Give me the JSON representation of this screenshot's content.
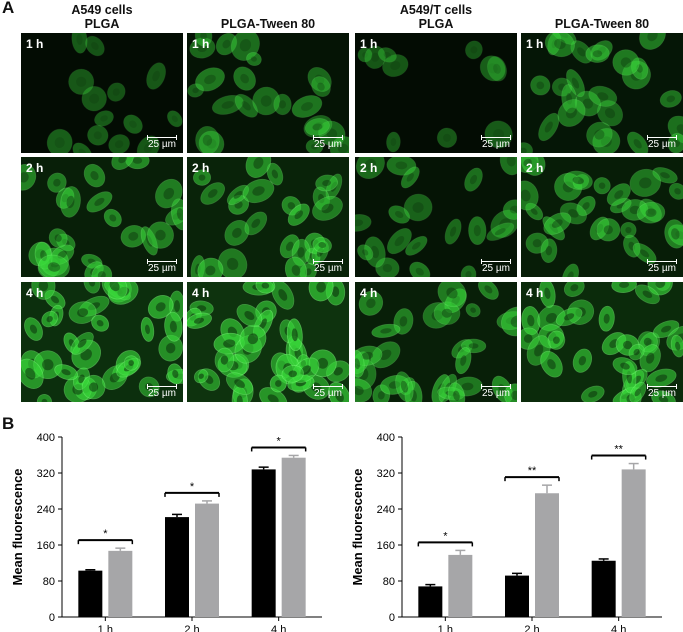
{
  "panel_a_label": "A",
  "panel_b_label": "B",
  "groups": [
    {
      "cell_line": "A549 cells",
      "formulation": "PLGA"
    },
    {
      "cell_line": "",
      "formulation": "PLGA-Tween 80"
    },
    {
      "cell_line": "A549/T cells",
      "formulation": "PLGA"
    },
    {
      "cell_line": "",
      "formulation": "PLGA-Tween 80"
    }
  ],
  "time_labels": [
    "1 h",
    "2 h",
    "4 h"
  ],
  "scale_bar_label": "25 µm",
  "fluorescence_color": "#39d83a",
  "chart_data": [
    {
      "type": "bar",
      "title": "",
      "xlabel": "",
      "ylabel": "Mean fluorescence",
      "categories": [
        "1 h",
        "2 h",
        "4 h"
      ],
      "ylim": [
        0,
        400
      ],
      "yticks": [
        0,
        80,
        160,
        240,
        320,
        400
      ],
      "series": [
        {
          "color": "#000000",
          "values": [
            103,
            222,
            328
          ],
          "errors": [
            2,
            6,
            5
          ]
        },
        {
          "color": "#a6a6a8",
          "values": [
            147,
            252,
            354
          ],
          "errors": [
            6,
            6,
            5
          ]
        }
      ],
      "significance": [
        "*",
        "*",
        "*"
      ],
      "grid": false
    },
    {
      "type": "bar",
      "title": "",
      "xlabel": "",
      "ylabel": "Mean fluorescence",
      "categories": [
        "1 h",
        "2 h",
        "4 h"
      ],
      "ylim": [
        0,
        400
      ],
      "yticks": [
        0,
        80,
        160,
        240,
        320,
        400
      ],
      "series": [
        {
          "color": "#000000",
          "values": [
            68,
            92,
            125
          ],
          "errors": [
            4,
            5,
            4
          ]
        },
        {
          "color": "#a6a6a8",
          "values": [
            138,
            275,
            328
          ],
          "errors": [
            10,
            18,
            13
          ]
        }
      ],
      "significance": [
        "*",
        "**",
        "**"
      ],
      "grid": false
    }
  ]
}
